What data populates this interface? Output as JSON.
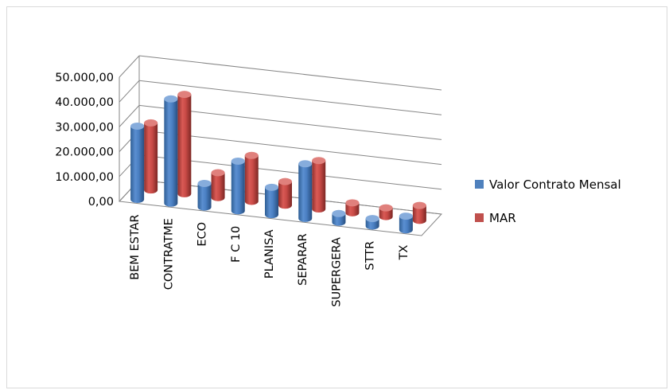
{
  "chart_data": {
    "type": "bar",
    "style": "3d-cylinder",
    "categories": [
      "BEM ESTAR",
      "CONTRATME",
      "ECO",
      "F C 10",
      "PLANISA",
      "SEPARAR",
      "SUPERGERA",
      "STTR",
      "TX"
    ],
    "series": [
      {
        "name": "Valor Contrato Mensal",
        "color": "#4f81bd",
        "values": [
          29500,
          42000,
          9500,
          20000,
          11000,
          22000,
          3500,
          3000,
          5500
        ]
      },
      {
        "name": "MAR",
        "color": "#c0504d",
        "values": [
          27000,
          40000,
          10000,
          18500,
          9500,
          19500,
          4000,
          3500,
          6000
        ]
      }
    ],
    "yticks": [
      "0,00",
      "10.000,00",
      "20.000,00",
      "30.000,00",
      "40.000,00",
      "50.000,00"
    ],
    "ylim": [
      0,
      50000
    ],
    "legend_position": "right",
    "grid": true
  }
}
